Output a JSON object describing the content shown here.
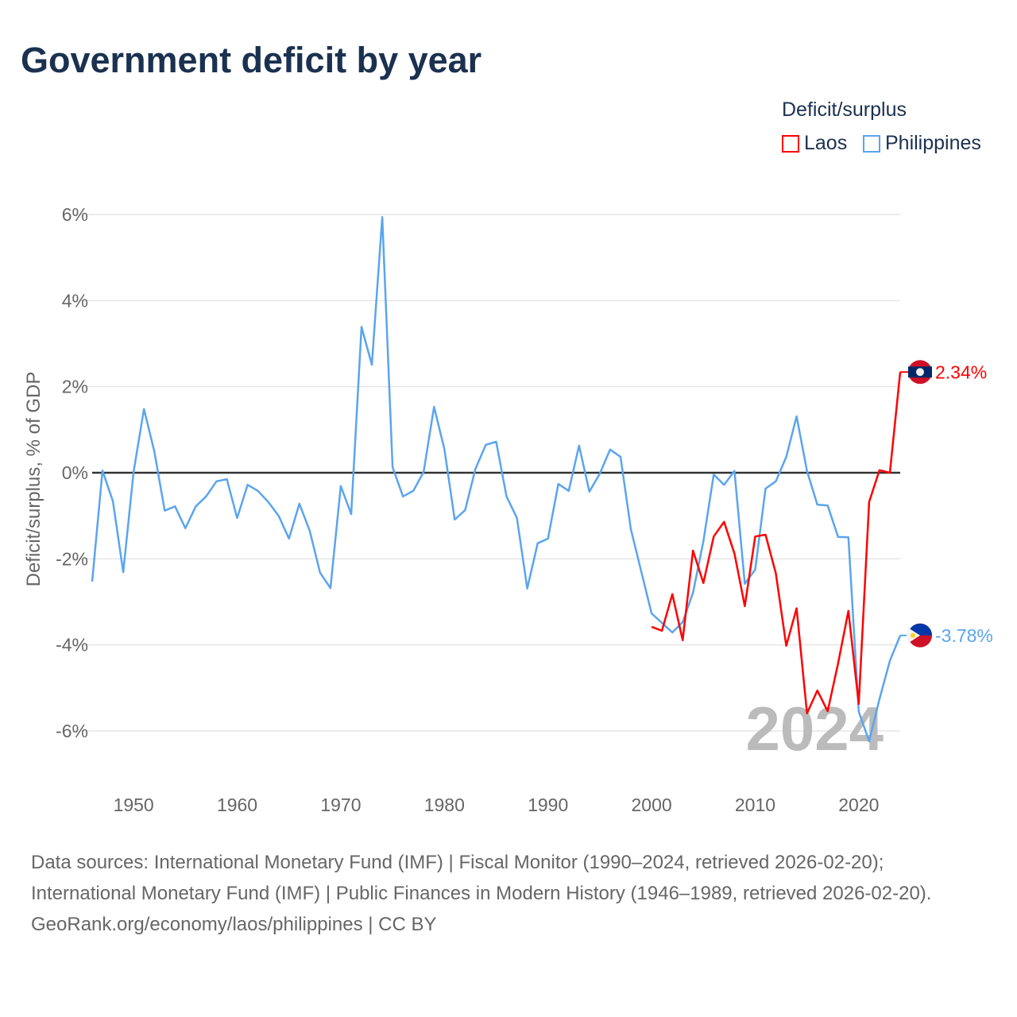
{
  "title": "Government deficit by year",
  "legend": {
    "title": "Deficit/surplus",
    "items": [
      {
        "label": "Laos",
        "color": "#ff0000"
      },
      {
        "label": "Philippines",
        "color": "#5aa5ee"
      }
    ]
  },
  "chart_data": {
    "type": "line",
    "title": "Government deficit by year",
    "xlabel": "",
    "ylabel": "Deficit/surplus, % of GDP",
    "xlim": [
      1946,
      2024
    ],
    "ylim": [
      -7,
      6
    ],
    "yticks": [
      6,
      4,
      2,
      0,
      -2,
      -4,
      -6
    ],
    "ytick_labels": [
      "6%",
      "4%",
      "2%",
      "0%",
      "-2%",
      "-4%",
      "-6%"
    ],
    "xticks": [
      1950,
      1960,
      1970,
      1980,
      1990,
      2000,
      2010,
      2020
    ],
    "xtick_labels": [
      "1950",
      "1960",
      "1970",
      "1980",
      "1990",
      "2000",
      "2010",
      "2020"
    ],
    "grid": true,
    "year_watermark": "2024",
    "series": [
      {
        "name": "Philippines",
        "color": "#5aa5ee",
        "end_label": "-3.78%",
        "start_year": 1946,
        "values": [
          -2.53,
          0.05,
          -0.66,
          -2.31,
          0.03,
          1.48,
          0.5,
          -0.88,
          -0.78,
          -1.29,
          -0.78,
          -0.55,
          -0.2,
          -0.15,
          -1.05,
          -0.28,
          -0.42,
          -0.68,
          -1.0,
          -1.53,
          -0.72,
          -1.35,
          -2.32,
          -2.68,
          -0.31,
          -0.96,
          3.39,
          2.51,
          5.94,
          0.13,
          -0.55,
          -0.42,
          0.02,
          1.53,
          0.55,
          -1.09,
          -0.87,
          0.09,
          0.65,
          0.72,
          -0.55,
          -1.05,
          -2.69,
          -1.64,
          -1.53,
          -0.26,
          -0.42,
          0.63,
          -0.44,
          -0.02,
          0.54,
          0.37,
          -1.31,
          -2.29,
          -3.27,
          -3.49,
          -3.71,
          -3.47,
          -2.79,
          -1.59,
          -0.04,
          -0.28,
          0.04,
          -2.58,
          -2.25,
          -0.37,
          -0.2,
          0.37,
          1.31,
          0.04,
          -0.74,
          -0.76,
          -1.49,
          -1.5,
          -5.55,
          -6.24,
          -5.26,
          -4.37,
          -3.78
        ]
      },
      {
        "name": "Laos",
        "color": "#ff0000",
        "end_label": "2.34%",
        "start_year": 2000,
        "values": [
          -3.58,
          -3.67,
          -2.82,
          -3.89,
          -1.81,
          -2.56,
          -1.48,
          -1.14,
          -1.88,
          -3.1,
          -1.48,
          -1.44,
          -2.34,
          -4.02,
          -3.15,
          -5.59,
          -5.06,
          -5.54,
          -4.43,
          -3.21,
          -5.37,
          -0.68,
          0.06,
          0.0,
          2.34
        ]
      }
    ]
  },
  "footer": {
    "sources": "Data sources: International Monetary Fund (IMF) | Fiscal Monitor (1990–2024, retrieved 2026-02-20); International Monetary Fund (IMF) | Public Finances in Modern History (1946–1989, retrieved 2026-02-20).",
    "credit": "GeoRank.org/economy/laos/philippines | CC BY"
  }
}
